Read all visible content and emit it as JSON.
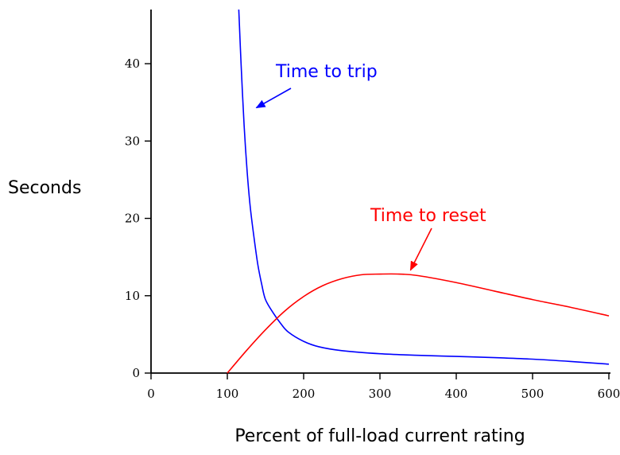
{
  "chart_data": {
    "type": "line",
    "xlabel": "Percent of full-load current rating",
    "ylabel": "Seconds",
    "xlim": [
      0,
      600
    ],
    "ylim": [
      0,
      47
    ],
    "xticks": [
      0,
      100,
      200,
      300,
      400,
      500,
      600
    ],
    "yticks": [
      0,
      10,
      20,
      30,
      40
    ],
    "grid": false,
    "series": [
      {
        "name": "Time to trip",
        "color": "#0000ff",
        "x": [
          115,
          118,
          122,
          126,
          130,
          135,
          140,
          145,
          150,
          160,
          170,
          180,
          200,
          220,
          250,
          300,
          350,
          400,
          450,
          500,
          550,
          600
        ],
        "y": [
          47,
          40,
          32,
          26,
          21.5,
          17.5,
          14,
          11.5,
          9.5,
          7.8,
          6.4,
          5.3,
          4.1,
          3.4,
          2.9,
          2.5,
          2.3,
          2.15,
          2.0,
          1.8,
          1.5,
          1.15
        ]
      },
      {
        "name": "Time to reset",
        "color": "#ff0000",
        "x": [
          100,
          125,
          150,
          175,
          200,
          225,
          250,
          275,
          300,
          325,
          350,
          400,
          450,
          500,
          550,
          600
        ],
        "y": [
          0,
          2.9,
          5.6,
          8.0,
          9.9,
          11.3,
          12.2,
          12.7,
          12.8,
          12.8,
          12.6,
          11.7,
          10.6,
          9.5,
          8.5,
          7.4
        ]
      }
    ],
    "annotations": [
      {
        "text": "Time to trip",
        "color": "#0000ff",
        "points_to": [
          138,
          34.3
        ]
      },
      {
        "text": "Time to reset",
        "color": "#ff0000",
        "points_to": [
          340,
          13.3
        ]
      }
    ]
  }
}
